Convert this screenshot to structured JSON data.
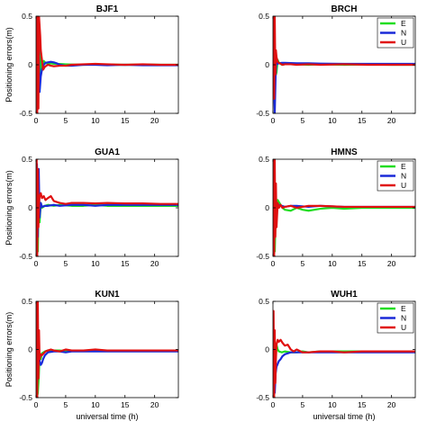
{
  "figure": {
    "ylabel": "Positioning errors(m)",
    "xlabel": "universal time (h)"
  },
  "chart_data": [
    {
      "type": "line",
      "title": "BJF1",
      "xlim": [
        0,
        24
      ],
      "ylim": [
        -0.5,
        0.5
      ],
      "xticks": [
        "0",
        "5",
        "10",
        "15",
        "20"
      ],
      "yticks": [
        "-0.5",
        "0",
        "0.5"
      ],
      "ylabel": "Positioning errors(m)",
      "xlabel": "",
      "legend": null,
      "grid": false,
      "series": [
        {
          "color": "#22dd22",
          "x": [
            0,
            0.15,
            0.3,
            0.45,
            0.6,
            0.8,
            1.0,
            1.3,
            1.6,
            2,
            2.5,
            3,
            4,
            5,
            6,
            8,
            10,
            12,
            15,
            18,
            21,
            24
          ],
          "y": [
            0,
            0.48,
            -0.35,
            0.42,
            -0.25,
            0.12,
            -0.06,
            0.04,
            0.02,
            0.01,
            0.015,
            0.01,
            0.008,
            0.005,
            0.003,
            0.0,
            0.003,
            0.002,
            0.0,
            0.002,
            0.0,
            0.0
          ]
        },
        {
          "color": "#1a2ad8",
          "x": [
            0,
            0.15,
            0.3,
            0.45,
            0.6,
            0.8,
            1.0,
            1.3,
            1.6,
            2,
            2.5,
            3,
            3.5,
            4,
            5,
            6,
            8,
            10,
            12,
            15,
            18,
            21,
            24
          ],
          "y": [
            0,
            0.3,
            -0.3,
            0.2,
            -0.28,
            -0.12,
            -0.05,
            0.0,
            0.02,
            0.025,
            0.03,
            0.025,
            0.015,
            0.0,
            -0.01,
            -0.01,
            0.0,
            0.0,
            -0.005,
            0.0,
            -0.005,
            -0.005,
            -0.005
          ]
        },
        {
          "color": "#e01010",
          "x": [
            0,
            0.1,
            0.2,
            0.3,
            0.4,
            0.5,
            0.6,
            0.7,
            0.8,
            1.0,
            1.2,
            1.5,
            2,
            2.5,
            3,
            4,
            5,
            6,
            8,
            10,
            12,
            15,
            18,
            21,
            24
          ],
          "y": [
            0,
            0.5,
            -0.5,
            0.5,
            -0.45,
            0.5,
            0.4,
            0.3,
            0.15,
            0.05,
            -0.05,
            -0.02,
            0.0,
            -0.01,
            -0.015,
            -0.01,
            -0.01,
            0.0,
            0.005,
            0.01,
            0.005,
            0.0,
            0.005,
            0.0,
            0.0
          ]
        }
      ]
    },
    {
      "type": "line",
      "title": "BRCH",
      "xlim": [
        0,
        24
      ],
      "ylim": [
        -0.5,
        0.5
      ],
      "xticks": [
        "0",
        "5",
        "10",
        "15",
        "20"
      ],
      "yticks": [
        "-0.5",
        "0",
        "0.5"
      ],
      "ylabel": "",
      "xlabel": "",
      "legend": [
        "E",
        "N",
        "U"
      ],
      "grid": false,
      "series": [
        {
          "name": "E",
          "color": "#22dd22",
          "x": [
            0,
            0.2,
            0.4,
            0.6,
            0.8,
            1.0,
            1.5,
            2,
            3,
            4,
            6,
            8,
            12,
            16,
            20,
            24
          ],
          "y": [
            0,
            0.12,
            -0.12,
            -0.08,
            0.05,
            0.02,
            0.0,
            0.005,
            0.01,
            0.005,
            0.0,
            0.005,
            0.0,
            0.003,
            0.0,
            0.0
          ]
        },
        {
          "name": "N",
          "color": "#1a2ad8",
          "x": [
            0,
            0.15,
            0.3,
            0.45,
            0.6,
            0.8,
            1.0,
            1.5,
            2,
            3,
            4,
            6,
            8,
            12,
            16,
            20,
            24
          ],
          "y": [
            0,
            -0.2,
            -0.5,
            -0.1,
            0.05,
            0.01,
            0.015,
            0.02,
            0.02,
            0.018,
            0.015,
            0.015,
            0.012,
            0.01,
            0.01,
            0.01,
            0.01
          ]
        },
        {
          "name": "U",
          "color": "#e01010",
          "x": [
            0,
            0.1,
            0.2,
            0.3,
            0.4,
            0.5,
            0.6,
            0.8,
            1.0,
            1.3,
            1.6,
            2,
            3,
            4,
            6,
            8,
            12,
            16,
            20,
            24
          ],
          "y": [
            0,
            0.5,
            -0.35,
            0.5,
            -0.1,
            0.15,
            0.08,
            0.03,
            0.02,
            0.01,
            0.0,
            0.005,
            0.005,
            0.0,
            0.005,
            0.0,
            0.005,
            0.0,
            0.0,
            0.0
          ]
        }
      ]
    },
    {
      "type": "line",
      "title": "GUA1",
      "xlim": [
        0,
        24
      ],
      "ylim": [
        -0.5,
        0.5
      ],
      "xticks": [
        "0",
        "5",
        "10",
        "15",
        "20"
      ],
      "yticks": [
        "-0.5",
        "0",
        "0.5"
      ],
      "ylabel": "Positioning errors(m)",
      "xlabel": "",
      "legend": null,
      "grid": false,
      "series": [
        {
          "color": "#22dd22",
          "x": [
            0,
            0.15,
            0.3,
            0.45,
            0.6,
            0.8,
            1.0,
            1.5,
            2,
            3,
            4,
            6,
            8,
            10,
            12,
            15,
            18,
            21,
            24
          ],
          "y": [
            0,
            0.3,
            -0.45,
            0.2,
            -0.15,
            0.05,
            0.0,
            0.02,
            0.03,
            0.02,
            0.03,
            0.02,
            0.02,
            0.03,
            0.02,
            0.02,
            0.02,
            0.02,
            0.02
          ]
        },
        {
          "color": "#1a2ad8",
          "x": [
            0,
            0.15,
            0.3,
            0.45,
            0.6,
            0.8,
            1.0,
            1.5,
            2,
            3,
            4,
            6,
            8,
            10,
            12,
            15,
            18,
            21,
            24
          ],
          "y": [
            0,
            0.45,
            -0.3,
            0.4,
            -0.1,
            0.05,
            0.01,
            0.02,
            0.02,
            0.03,
            0.02,
            0.03,
            0.03,
            0.02,
            0.03,
            0.03,
            0.03,
            0.03,
            0.03
          ]
        },
        {
          "color": "#e01010",
          "x": [
            0,
            0.1,
            0.2,
            0.3,
            0.4,
            0.5,
            0.6,
            0.8,
            1.0,
            1.3,
            1.6,
            2.0,
            2.5,
            3,
            3.5,
            4,
            5,
            6,
            8,
            10,
            12,
            15,
            18,
            21,
            24
          ],
          "y": [
            0,
            0.5,
            -0.5,
            0.4,
            -0.2,
            0.05,
            0.12,
            0.15,
            0.1,
            0.12,
            0.08,
            0.1,
            0.12,
            0.07,
            0.06,
            0.05,
            0.04,
            0.05,
            0.05,
            0.045,
            0.05,
            0.045,
            0.045,
            0.04,
            0.04
          ]
        }
      ]
    },
    {
      "type": "line",
      "title": "HMNS",
      "xlim": [
        0,
        24
      ],
      "ylim": [
        -0.5,
        0.5
      ],
      "xticks": [
        "0",
        "5",
        "10",
        "15",
        "20"
      ],
      "yticks": [
        "-0.5",
        "0",
        "0.5"
      ],
      "ylabel": "",
      "xlabel": "",
      "legend": [
        "E",
        "N",
        "U"
      ],
      "grid": false,
      "series": [
        {
          "name": "E",
          "color": "#22dd22",
          "x": [
            0,
            0.15,
            0.3,
            0.45,
            0.6,
            0.8,
            1.0,
            1.3,
            1.6,
            2,
            3,
            4,
            5,
            6,
            8,
            10,
            12,
            15,
            18,
            21,
            24
          ],
          "y": [
            0,
            -0.1,
            -0.45,
            -0.1,
            0.05,
            0.08,
            0.06,
            0.03,
            0.0,
            -0.02,
            -0.03,
            0.0,
            -0.02,
            -0.03,
            -0.01,
            0.0,
            -0.01,
            0.0,
            0.0,
            0.0,
            0.0
          ]
        },
        {
          "name": "N",
          "color": "#1a2ad8",
          "x": [
            0,
            0.15,
            0.3,
            0.45,
            0.6,
            0.8,
            1.0,
            1.5,
            2,
            3,
            4,
            6,
            8,
            12,
            16,
            20,
            24
          ],
          "y": [
            0,
            0.05,
            -0.1,
            0.2,
            -0.05,
            0.02,
            0.03,
            0.02,
            0.01,
            0.02,
            0.02,
            0.01,
            0.02,
            0.01,
            0.01,
            0.01,
            0.01
          ]
        },
        {
          "name": "U",
          "color": "#e01010",
          "x": [
            0,
            0.1,
            0.2,
            0.3,
            0.4,
            0.5,
            0.6,
            0.8,
            1.0,
            1.3,
            1.6,
            2,
            3,
            4,
            6,
            8,
            10,
            12,
            15,
            18,
            21,
            24
          ],
          "y": [
            0,
            0.5,
            -0.5,
            0.5,
            -0.3,
            0.25,
            -0.2,
            0.05,
            0.0,
            0.03,
            0.0,
            0.01,
            0.02,
            0.0,
            0.02,
            0.02,
            0.015,
            0.01,
            0.01,
            0.01,
            0.01,
            0.01
          ]
        }
      ]
    },
    {
      "type": "line",
      "title": "KUN1",
      "xlim": [
        0,
        24
      ],
      "ylim": [
        -0.5,
        0.5
      ],
      "xticks": [
        "0",
        "5",
        "10",
        "15",
        "20"
      ],
      "yticks": [
        "-0.5",
        "0",
        "0.5"
      ],
      "ylabel": "Positioning errors(m)",
      "xlabel": "universal time (h)",
      "legend": null,
      "grid": false,
      "series": [
        {
          "color": "#22dd22",
          "x": [
            0,
            0.15,
            0.3,
            0.45,
            0.6,
            0.8,
            1.0,
            1.5,
            2,
            2.5,
            3,
            4,
            5,
            6,
            8,
            10,
            12,
            15,
            18,
            21,
            24
          ],
          "y": [
            0,
            -0.5,
            -0.45,
            -0.3,
            -0.05,
            -0.1,
            -0.04,
            -0.02,
            -0.01,
            -0.02,
            -0.01,
            -0.01,
            -0.02,
            -0.01,
            -0.015,
            -0.01,
            -0.01,
            -0.01,
            -0.01,
            -0.01,
            -0.01
          ]
        },
        {
          "color": "#1a2ad8",
          "x": [
            0,
            0.15,
            0.3,
            0.45,
            0.6,
            0.8,
            1.0,
            1.2,
            1.5,
            2,
            3,
            4,
            5,
            6,
            8,
            10,
            12,
            15,
            18,
            21,
            24
          ],
          "y": [
            0,
            0.2,
            -0.1,
            0.05,
            -0.12,
            -0.16,
            -0.14,
            -0.1,
            -0.06,
            -0.03,
            -0.02,
            -0.02,
            -0.03,
            -0.02,
            -0.02,
            -0.02,
            -0.02,
            -0.02,
            -0.02,
            -0.02,
            -0.02
          ]
        },
        {
          "color": "#e01010",
          "x": [
            0,
            0.1,
            0.2,
            0.3,
            0.4,
            0.5,
            0.6,
            0.8,
            1.0,
            1.3,
            1.6,
            2,
            2.5,
            3,
            4,
            5,
            6,
            8,
            10,
            12,
            15,
            18,
            21,
            24
          ],
          "y": [
            0,
            0.5,
            -0.5,
            0.5,
            -0.3,
            0.2,
            -0.1,
            -0.05,
            -0.06,
            -0.04,
            -0.02,
            -0.01,
            0.0,
            -0.01,
            -0.02,
            0.0,
            -0.01,
            -0.01,
            0.0,
            -0.01,
            -0.01,
            -0.01,
            -0.01,
            -0.01
          ]
        }
      ]
    },
    {
      "type": "line",
      "title": "WUH1",
      "xlim": [
        0,
        24
      ],
      "ylim": [
        -0.5,
        0.5
      ],
      "xticks": [
        "0",
        "5",
        "10",
        "15",
        "20"
      ],
      "yticks": [
        "-0.5",
        "0",
        "0.5"
      ],
      "ylabel": "",
      "xlabel": "universal time (h)",
      "legend": [
        "E",
        "N",
        "U"
      ],
      "grid": false,
      "series": [
        {
          "name": "E",
          "color": "#22dd22",
          "x": [
            0,
            0.15,
            0.3,
            0.45,
            0.6,
            0.8,
            1.0,
            1.5,
            2,
            3,
            4,
            5,
            6,
            8,
            10,
            12,
            15,
            18,
            21,
            24
          ],
          "y": [
            0,
            0.1,
            -0.3,
            -0.1,
            0.05,
            0.0,
            -0.02,
            -0.03,
            -0.02,
            -0.03,
            -0.03,
            -0.02,
            -0.03,
            -0.02,
            -0.02,
            -0.02,
            -0.02,
            -0.02,
            -0.02,
            -0.02
          ]
        },
        {
          "name": "N",
          "color": "#1a2ad8",
          "x": [
            0,
            0.15,
            0.3,
            0.45,
            0.6,
            0.8,
            1.0,
            1.3,
            1.6,
            2,
            3,
            4,
            5,
            6,
            8,
            10,
            12,
            15,
            18,
            21,
            24
          ],
          "y": [
            0,
            -0.2,
            -0.45,
            -0.25,
            -0.18,
            -0.15,
            -0.12,
            -0.1,
            -0.07,
            -0.05,
            -0.03,
            -0.03,
            -0.03,
            -0.03,
            -0.03,
            -0.03,
            -0.03,
            -0.03,
            -0.03,
            -0.03,
            -0.03
          ]
        },
        {
          "name": "U",
          "color": "#e01010",
          "x": [
            0,
            0.1,
            0.2,
            0.3,
            0.4,
            0.5,
            0.6,
            0.8,
            1.0,
            1.3,
            1.6,
            2,
            2.5,
            3,
            3.5,
            4,
            5,
            6,
            8,
            10,
            12,
            15,
            18,
            21,
            24
          ],
          "y": [
            0,
            0.4,
            -0.5,
            0.2,
            -0.35,
            -0.1,
            0.05,
            0.1,
            0.08,
            0.1,
            0.07,
            0.04,
            0.05,
            0.0,
            -0.02,
            0.0,
            -0.03,
            -0.03,
            -0.02,
            -0.02,
            -0.03,
            -0.02,
            -0.02,
            -0.02,
            -0.02
          ]
        }
      ]
    }
  ]
}
